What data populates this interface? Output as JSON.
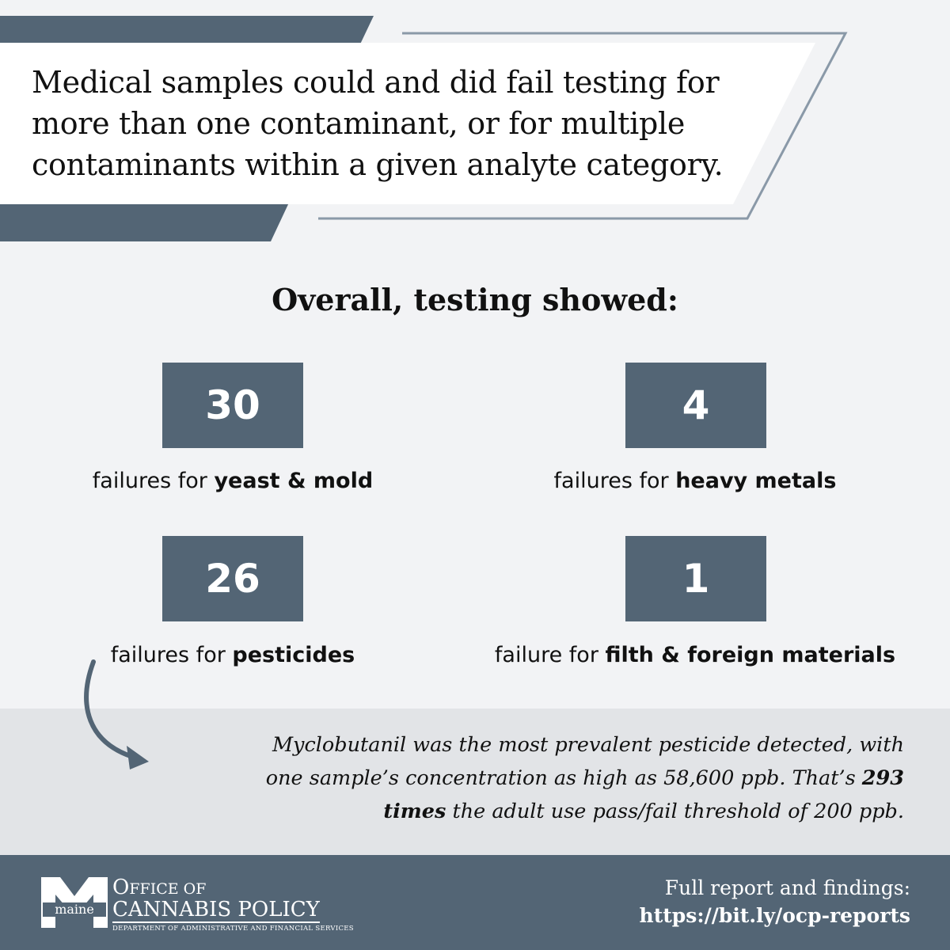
{
  "headline": "Medical samples could and did fail testing for more than one contaminant, or for multiple contaminants within a given analyte category.",
  "subheading": "Overall, testing showed:",
  "stats": [
    {
      "value": "30",
      "prefix": "failures for ",
      "category": "yeast & mold"
    },
    {
      "value": "4",
      "prefix": "failures for ",
      "category": "heavy metals"
    },
    {
      "value": "26",
      "prefix": "failures for ",
      "category": "pesticides"
    },
    {
      "value": "1",
      "prefix": "failure for ",
      "category": "filth & foreign materials"
    }
  ],
  "note": {
    "line1": "Myclobutanil was the most prevalent pesticide detected, with",
    "line2_text": "one sample’s concentration as high as 58,600 ppb. That’s ",
    "line2_bold": "293",
    "line3_bold": "times",
    "line3_text": " the adult use pass/fail threshold of 200 ppb."
  },
  "footer": {
    "logo": {
      "word": "maine",
      "line1_big": "O",
      "line1_rest": "FFICE OF",
      "line2": "CANNABIS POLICY",
      "dept": "DEPARTMENT OF ADMINISTRATIVE AND FINANCIAL SERVICES"
    },
    "report_label": "Full report and findings:",
    "report_url": "https://bit.ly/ocp-reports"
  },
  "colors": {
    "accent": "#536575",
    "background": "#f2f3f5",
    "note_band": "#e2e4e7",
    "text": "#111111"
  }
}
